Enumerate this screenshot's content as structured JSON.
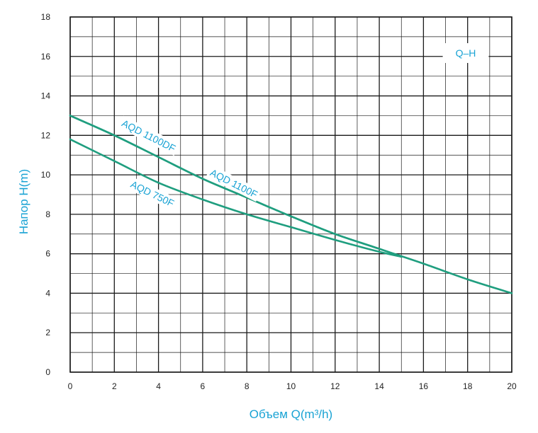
{
  "chart_data": {
    "type": "line",
    "xlabel": "Объем Q(m³/h)",
    "ylabel": "Напор H(m)",
    "annotation": "Q–H",
    "xlim": [
      0,
      20
    ],
    "ylim": [
      0,
      18
    ],
    "x_ticks": [
      0,
      2,
      4,
      6,
      8,
      10,
      12,
      14,
      16,
      18,
      20
    ],
    "y_ticks": [
      0,
      2,
      4,
      6,
      8,
      10,
      12,
      14,
      16,
      18
    ],
    "grid": true,
    "accent_color": "#1aa3d4",
    "line_color": "#1f9e7f",
    "series": [
      {
        "name": "AQD 1100DF",
        "x": [
          0,
          2,
          4,
          6,
          8,
          10,
          12,
          14,
          16,
          18,
          20
        ],
        "y": [
          13.0,
          12.0,
          10.9,
          9.8,
          8.85,
          7.9,
          7.0,
          6.25,
          5.5,
          4.7,
          4.0
        ]
      },
      {
        "name": "AQD 1100F",
        "x": [
          0,
          2,
          4,
          6,
          8,
          10,
          12,
          14,
          15
        ],
        "y": [
          13.0,
          12.0,
          10.9,
          9.8,
          8.85,
          7.9,
          7.0,
          6.25,
          5.85
        ]
      },
      {
        "name": "AQD 750F",
        "x": [
          0,
          2,
          4,
          6,
          8,
          10,
          12,
          14,
          15
        ],
        "y": [
          11.8,
          10.7,
          9.6,
          8.75,
          8.0,
          7.35,
          6.7,
          6.1,
          5.85
        ]
      }
    ],
    "labels": [
      {
        "text": "AQD 1100DF",
        "x": 2.3,
        "y": 12.5,
        "angle": 27
      },
      {
        "text": "AQD 1100F",
        "x": 6.3,
        "y": 10.0,
        "angle": 27
      },
      {
        "text": "AQD 750F",
        "x": 2.7,
        "y": 9.4,
        "angle": 26
      }
    ]
  }
}
